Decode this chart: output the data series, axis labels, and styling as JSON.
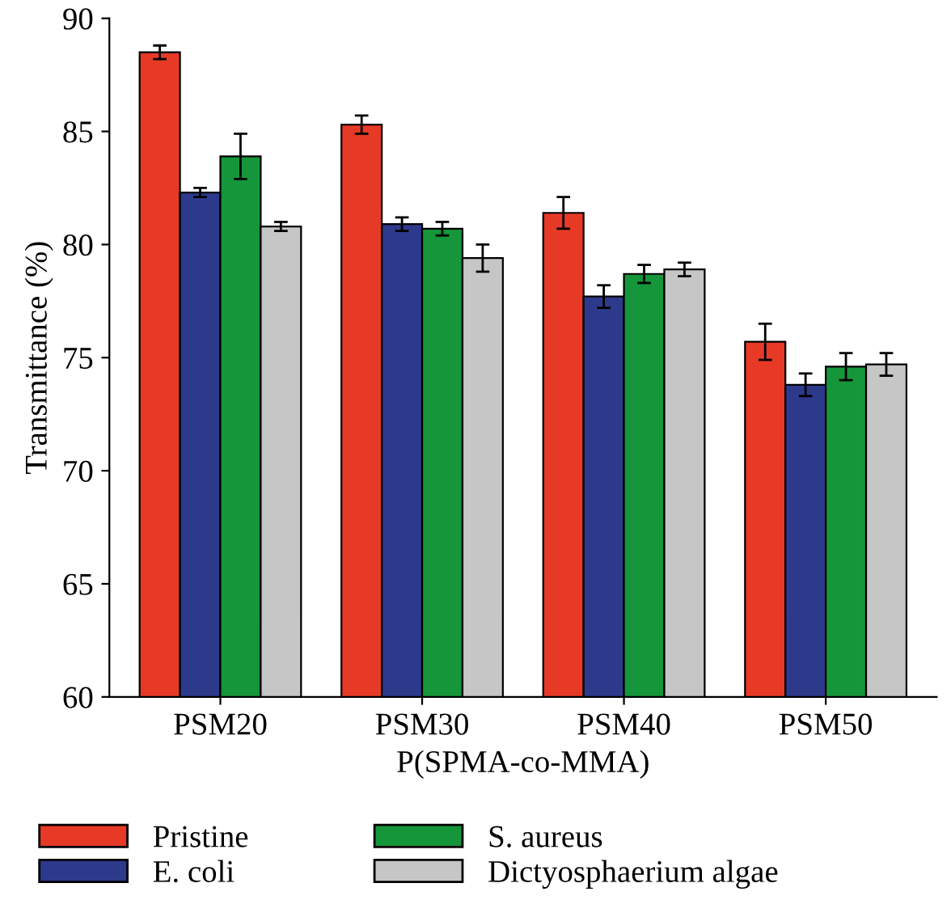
{
  "chart_data": {
    "type": "bar",
    "xlabel": "P(SPMA-co-MMA)",
    "ylabel": "Transmittance (%)",
    "categories": [
      "PSM20",
      "PSM30",
      "PSM40",
      "PSM50"
    ],
    "series": [
      {
        "name": "Pristine",
        "color": "#e63a27",
        "values": [
          88.5,
          85.3,
          81.4,
          75.7
        ],
        "errors": [
          0.3,
          0.4,
          0.7,
          0.8
        ]
      },
      {
        "name": "E. coli",
        "color": "#2d3a8c",
        "values": [
          82.3,
          80.9,
          77.7,
          73.8
        ],
        "errors": [
          0.2,
          0.3,
          0.5,
          0.5
        ]
      },
      {
        "name": "S. aureus",
        "color": "#16963a",
        "values": [
          83.9,
          80.7,
          78.7,
          74.6
        ],
        "errors": [
          1.0,
          0.3,
          0.4,
          0.6
        ]
      },
      {
        "name": "Dictyosphaerium algae",
        "color": "#c6c6c6",
        "values": [
          80.8,
          79.4,
          78.9,
          74.7
        ],
        "errors": [
          0.2,
          0.6,
          0.3,
          0.5
        ]
      }
    ],
    "ylim": [
      60,
      90
    ],
    "yticks": [
      60,
      65,
      70,
      75,
      80,
      85,
      90
    ],
    "grid": false,
    "legend": "bottom"
  }
}
